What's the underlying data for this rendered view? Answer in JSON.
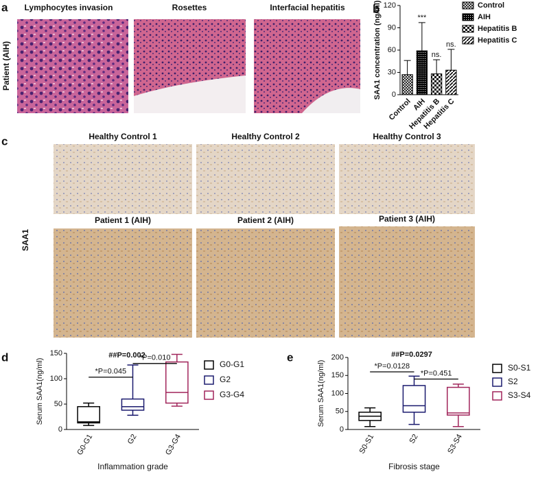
{
  "figure": {
    "panel_labels": [
      "a",
      "b",
      "c",
      "d",
      "e"
    ],
    "a": {
      "titles": [
        "Lymphocytes invasion",
        "Rosettes",
        "Interfacial hepatitis"
      ],
      "row_label": "Patient (AIH)"
    },
    "c": {
      "titles": [
        "Healthy Control 1",
        "Healthy Control 2",
        "Healthy Control 3",
        "Patient 1 (AIH)",
        "Patient 2 (AIH)",
        "Patient 3 (AIH)"
      ],
      "row_label": "SAA1"
    }
  },
  "chart_data": [
    {
      "type": "bar",
      "ylabel": "SAA1 concentration (ng/ml)",
      "categories": [
        "Control",
        "AIH",
        "Hepatitis B",
        "Hepatitis C"
      ],
      "values": [
        27,
        59,
        28,
        33
      ],
      "errors": [
        19,
        38,
        19,
        28
      ],
      "patterns": [
        "crosshatch",
        "dots",
        "checker",
        "diagonal"
      ],
      "color": "#000000",
      "ylim": [
        0,
        120
      ],
      "yticks": [
        0,
        30,
        60,
        90,
        120
      ],
      "annotations": [
        {
          "category": "AIH",
          "text": "***"
        },
        {
          "category": "Hepatitis B",
          "text": "ns."
        },
        {
          "category": "Hepatitis C",
          "text": "ns."
        }
      ],
      "legend": "right"
    },
    {
      "type": "box",
      "title": "##P=0.002",
      "xlabel": "Inflammation grade",
      "ylabel": "Serum SAA1(ng/ml)",
      "series": [
        {
          "name": "G0-G1",
          "color": "#000000",
          "min": 8,
          "q1": 13,
          "median": 15,
          "q3": 45,
          "max": 52
        },
        {
          "name": "G2",
          "color": "#1a1a6e",
          "min": 28,
          "q1": 38,
          "median": 45,
          "q3": 60,
          "max": 127
        },
        {
          "name": "G3-G4",
          "color": "#a0245a",
          "min": 46,
          "q1": 52,
          "median": 73,
          "q3": 133,
          "max": 148
        }
      ],
      "ylim": [
        0,
        150
      ],
      "yticks": [
        0,
        50,
        100,
        150
      ],
      "comparisons": [
        {
          "from": "G0-G1",
          "to": "G2",
          "y": 103,
          "text": "*P=0.045"
        },
        {
          "from": "G2",
          "to": "G3-G4",
          "y": 130,
          "text": "*P=0.010"
        }
      ],
      "legend": "right"
    },
    {
      "type": "box",
      "title": "##P=0.0297",
      "xlabel": "Fibrosis stage",
      "ylabel": "Serum SAA1(ng/ml)",
      "series": [
        {
          "name": "S0-S1",
          "color": "#000000",
          "min": 8,
          "q1": 25,
          "median": 37,
          "q3": 48,
          "max": 60
        },
        {
          "name": "S2",
          "color": "#1a1a6e",
          "min": 14,
          "q1": 48,
          "median": 66,
          "q3": 122,
          "max": 148
        },
        {
          "name": "S3-S4",
          "color": "#a0245a",
          "min": 8,
          "q1": 40,
          "median": 46,
          "q3": 117,
          "max": 126
        }
      ],
      "ylim": [
        0,
        200
      ],
      "yticks": [
        0,
        50,
        100,
        150,
        200
      ],
      "comparisons": [
        {
          "from": "S0-S1",
          "to": "S2",
          "y": 160,
          "text": "*P=0.0128"
        },
        {
          "from": "S2",
          "to": "S3-S4",
          "y": 140,
          "text": "*P=0.451"
        }
      ],
      "legend": "right"
    }
  ]
}
